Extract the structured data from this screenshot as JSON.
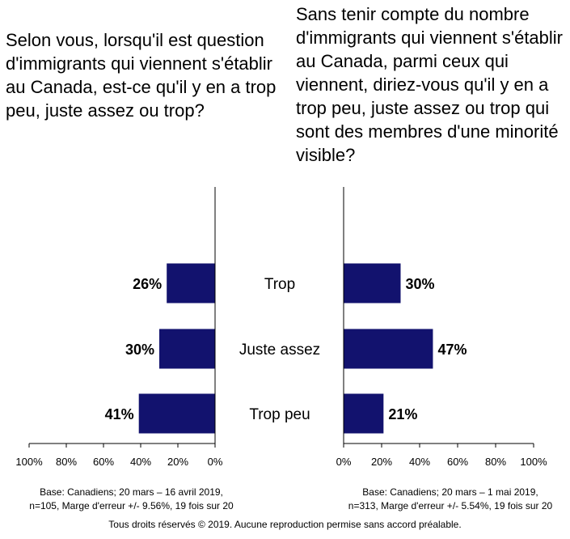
{
  "chart_data": [
    {
      "type": "bar",
      "orientation": "horizontal",
      "direction": "right-to-left",
      "title": "Selon vous, lorsqu'il est question d'immigrants qui viennent s'établir au Canada, est-ce qu'il y en a trop peu, juste assez ou trop?",
      "categories": [
        "Trop",
        "Juste assez",
        "Trop peu"
      ],
      "values": [
        26,
        30,
        41
      ],
      "value_labels": [
        "26%",
        "30%",
        "41%"
      ],
      "xlim": [
        0,
        100
      ],
      "ticks": [
        "100%",
        "80%",
        "60%",
        "40%",
        "20%",
        "0%"
      ],
      "bar_color": "#12126e",
      "footnote": [
        "Base: Canadiens; 20 mars – 16 avril 2019,",
        "n=105, Marge d'erreur +/- 9.56%, 19 fois sur 20"
      ]
    },
    {
      "type": "bar",
      "orientation": "horizontal",
      "direction": "left-to-right",
      "title": "Sans tenir compte du nombre d'immigrants qui viennent s'établir au Canada, parmi ceux qui viennent, diriez-vous qu'il y en a trop peu, juste assez ou trop qui sont des membres d'une minorité visible?",
      "categories": [
        "Trop",
        "Juste assez",
        "Trop peu"
      ],
      "values": [
        30,
        47,
        21
      ],
      "value_labels": [
        "30%",
        "47%",
        "21%"
      ],
      "xlim": [
        0,
        100
      ],
      "ticks": [
        "0%",
        "20%",
        "40%",
        "60%",
        "80%",
        "100%"
      ],
      "bar_color": "#12126e",
      "footnote": [
        "Base: Canadiens; 20 mars – 1 mai 2019,",
        "n=313, Marge d'erreur +/- 5.54%, 19 fois sur 20"
      ]
    }
  ],
  "copyright": "Tous droits réservés © 2019. Aucune reproduction permise sans accord préalable."
}
